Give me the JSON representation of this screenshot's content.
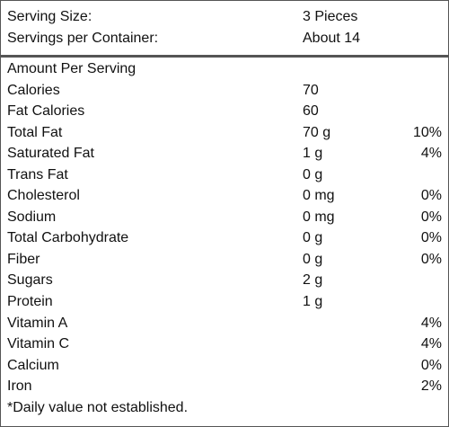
{
  "serving": {
    "size_label": "Serving Size:",
    "size_value": "3 Pieces",
    "per_container_label": "Servings per Container:",
    "per_container_value": "About 14"
  },
  "amount_per_serving": "Amount Per Serving",
  "nutrients": [
    {
      "name": "Calories",
      "amount": "70",
      "dv": ""
    },
    {
      "name": "Fat Calories",
      "amount": "60",
      "dv": ""
    },
    {
      "name": "Total Fat",
      "amount": "70 g",
      "dv": "10%"
    },
    {
      "name": "Saturated Fat",
      "amount": "1 g",
      "dv": "4%"
    },
    {
      "name": "Trans Fat",
      "amount": "0 g",
      "dv": ""
    },
    {
      "name": "Cholesterol",
      "amount": "0 mg",
      "dv": "0%"
    },
    {
      "name": "Sodium",
      "amount": "0 mg",
      "dv": "0%"
    },
    {
      "name": "Total Carbohydrate",
      "amount": "0 g",
      "dv": "0%"
    },
    {
      "name": "Fiber",
      "amount": "0 g",
      "dv": "0%"
    },
    {
      "name": "Sugars",
      "amount": "2 g",
      "dv": ""
    },
    {
      "name": "Protein",
      "amount": "1 g",
      "dv": ""
    },
    {
      "name": "Vitamin A",
      "amount": "",
      "dv": "4%"
    },
    {
      "name": "Vitamin C",
      "amount": "",
      "dv": "4%"
    },
    {
      "name": "Calcium",
      "amount": "",
      "dv": "0%"
    },
    {
      "name": "Iron",
      "amount": "",
      "dv": "2%"
    }
  ],
  "footnote": "*Daily value not established."
}
